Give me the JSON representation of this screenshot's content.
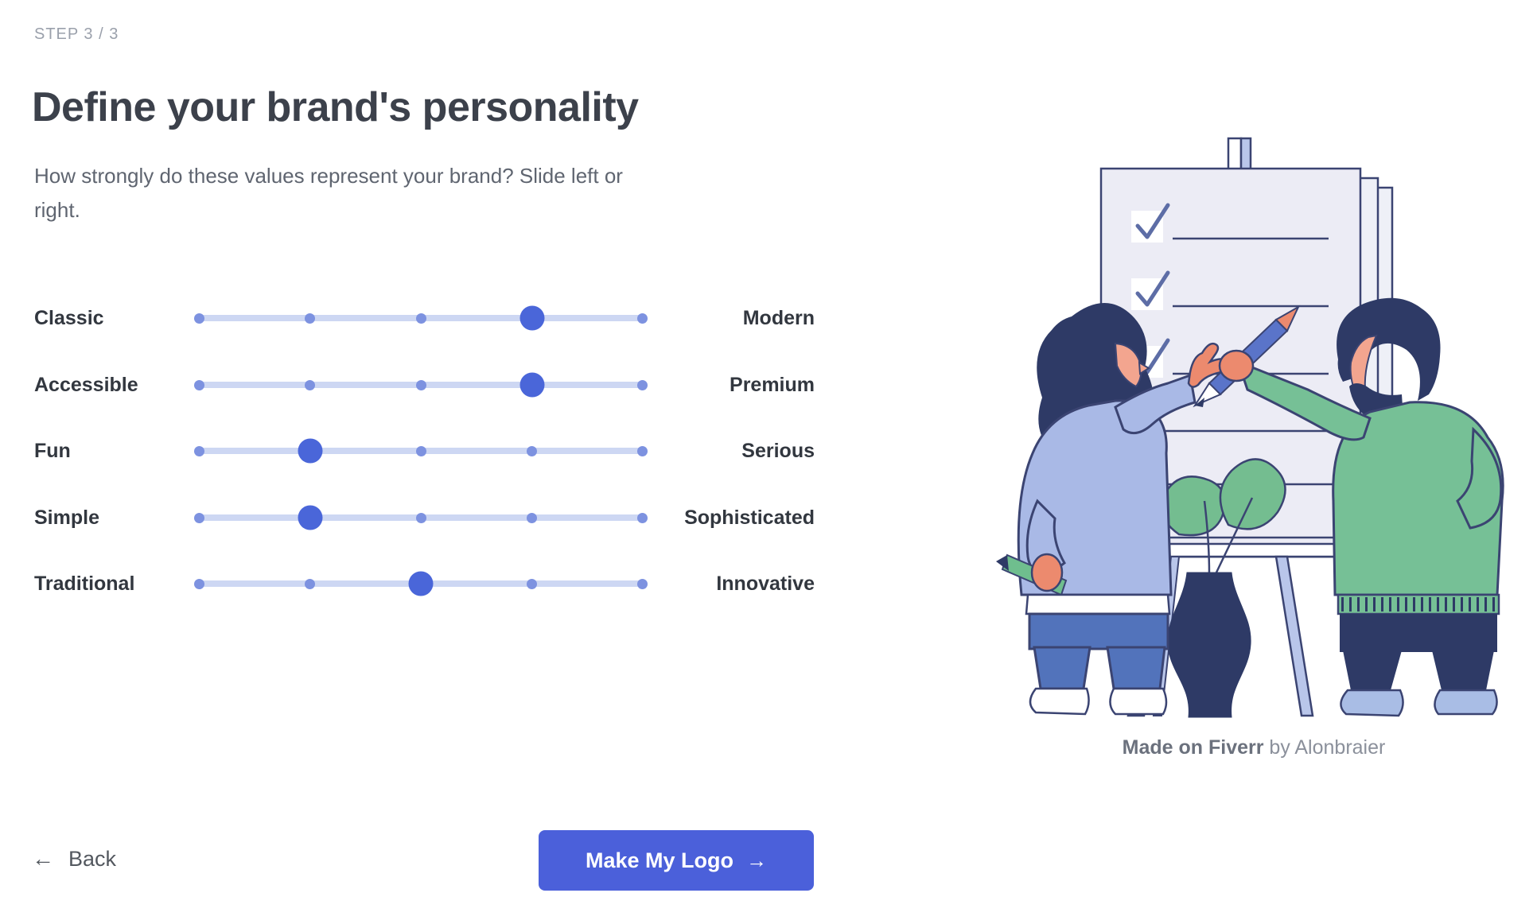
{
  "step_label": "STEP 3 / 3",
  "title": "Define your brand's personality",
  "subtitle": "How strongly do these values represent your brand? Slide left or\nright.",
  "sliders": {
    "steps": 5,
    "rows": [
      {
        "left": "Classic",
        "right": "Modern",
        "value": 3
      },
      {
        "left": "Accessible",
        "right": "Premium",
        "value": 3
      },
      {
        "left": "Fun",
        "right": "Serious",
        "value": 1
      },
      {
        "left": "Simple",
        "right": "Sophisticated",
        "value": 1
      },
      {
        "left": "Traditional",
        "right": "Innovative",
        "value": 2
      }
    ]
  },
  "footer": {
    "back_arrow": "←",
    "back_label": "Back",
    "cta_label": "Make My Logo",
    "cta_arrow": "→"
  },
  "caption": {
    "bold": "Made on Fiverr",
    "rest": " by Alonbraier"
  },
  "colors": {
    "accent_handle": "#4a66d9",
    "slider_dot": "#7d92e0",
    "slider_track": "#cdd7f3",
    "cta_button": "#4b60da",
    "title_text": "#3c414b",
    "body_text": "#5f6570",
    "step_text": "#9aa0ab"
  }
}
